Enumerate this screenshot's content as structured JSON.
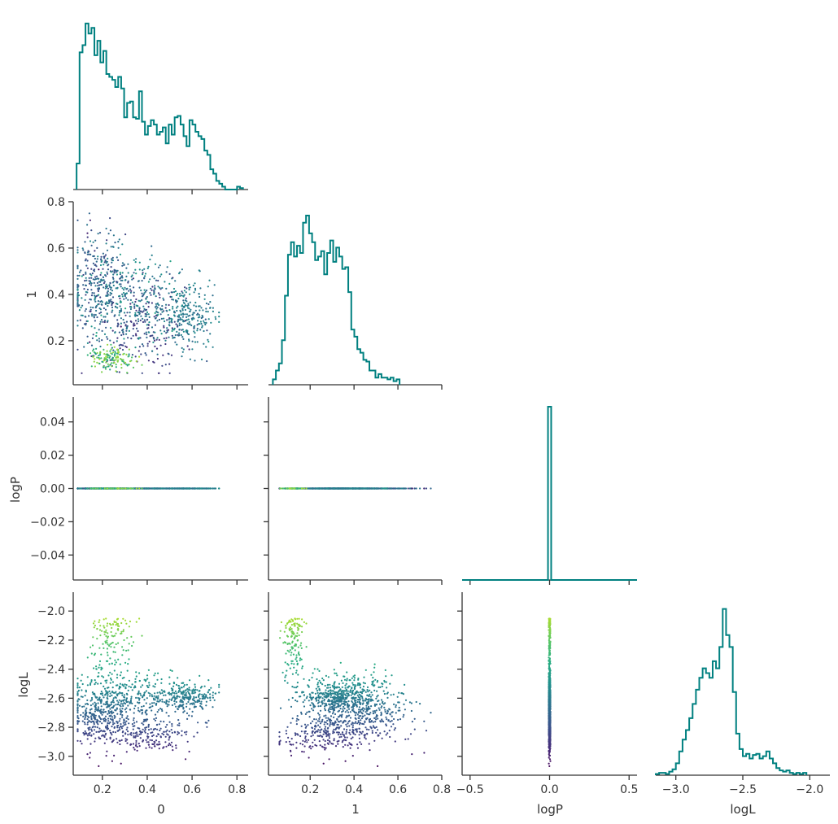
{
  "chart_data": {
    "type": "scatter",
    "layout": "corner-pairplot",
    "variables": [
      "0",
      "1",
      "logP",
      "logL"
    ],
    "diagonal": "step-histogram",
    "hist_color": "#008080",
    "colormap": "viridis",
    "color_variable": "logL",
    "grid": false,
    "legend": "none",
    "axes": {
      "0": {
        "label": "0",
        "lim": [
          0.07,
          0.85
        ],
        "ticks": [
          0.2,
          0.4,
          0.6,
          0.8
        ],
        "tick_labels": [
          "0.2",
          "0.4",
          "0.6",
          "0.8"
        ]
      },
      "1": {
        "label": "1",
        "lim": [
          0.01,
          0.8
        ],
        "ticks": [
          0.2,
          0.4,
          0.6,
          0.8
        ],
        "tick_labels": [
          "0.2",
          "0.4",
          "0.6",
          "0.8"
        ],
        "y_ticks": [
          0.2,
          0.4,
          0.6,
          0.8
        ],
        "y_tick_labels": [
          "0.2",
          "0.4",
          "0.6",
          "0.8"
        ]
      },
      "logP": {
        "label": "logP",
        "lim": [
          -0.055,
          0.055
        ],
        "ticks": [
          -0.5,
          0.0,
          0.5
        ],
        "tick_labels": [
          "−0.5",
          "0.0",
          "0.5"
        ],
        "x_lim": [
          -0.55,
          0.55
        ],
        "y_ticks": [
          -0.04,
          -0.02,
          0.0,
          0.02,
          0.04
        ],
        "y_tick_labels": [
          "−0.04",
          "−0.02",
          "0.00",
          "0.02",
          "0.04"
        ]
      },
      "logL": {
        "label": "logL",
        "lim": [
          -3.15,
          -1.85
        ],
        "ticks": [
          -3.0,
          -2.5,
          -2.0
        ],
        "tick_labels": [
          "−3.0",
          "−2.5",
          "−2.0"
        ],
        "y_lim": [
          -3.13,
          -1.87
        ],
        "y_ticks": [
          -3.0,
          -2.8,
          -2.6,
          -2.4,
          -2.2,
          -2.0
        ],
        "y_tick_labels": [
          "−3.0",
          "−2.8",
          "−2.6",
          "−2.4",
          "−2.2",
          "−2.0"
        ]
      }
    },
    "histograms": {
      "0": {
        "bin_start": 0.085,
        "bin_width": 0.01325,
        "counts": [
          18,
          95,
          100,
          115,
          108,
          112,
          93,
          103,
          88,
          96,
          80,
          78,
          76,
          71,
          78,
          70,
          50,
          60,
          61,
          50,
          49,
          68,
          47,
          38,
          44,
          48,
          45,
          38,
          40,
          43,
          32,
          45,
          38,
          50,
          51,
          45,
          37,
          30,
          48,
          45,
          40,
          37,
          35,
          27,
          24,
          14,
          11,
          6,
          4,
          2,
          0,
          0,
          0,
          0,
          2,
          1
        ]
      },
      "1": {
        "bin_start": 0.03,
        "bin_width": 0.01375,
        "counts": [
          3,
          8,
          12,
          25,
          50,
          73,
          80,
          72,
          78,
          74,
          91,
          95,
          85,
          80,
          70,
          72,
          75,
          62,
          74,
          81,
          69,
          77,
          72,
          65,
          66,
          52,
          31,
          27,
          20,
          18,
          14,
          13,
          8,
          8,
          4,
          6,
          4,
          4,
          3,
          4,
          2,
          3
        ]
      },
      "logP": {
        "bins": [
          [
            -0.55,
            0.0
          ],
          [
            -0.01,
            0.01,
            1.0
          ],
          [
            0.01,
            0.55,
            0.0
          ]
        ]
      },
      "logL": {
        "bin_start": -3.15,
        "bin_width": 0.025,
        "counts": [
          1,
          2,
          2,
          1,
          3,
          5,
          10,
          20,
          30,
          38,
          48,
          60,
          72,
          82,
          90,
          86,
          82,
          96,
          90,
          108,
          140,
          118,
          108,
          70,
          35,
          22,
          16,
          18,
          14,
          17,
          18,
          14,
          16,
          20,
          14,
          10,
          6,
          4,
          3,
          4,
          2,
          1,
          2,
          1,
          2
        ]
      },
      "logL_y_max": 150,
      "0_y_max": 120,
      "1_y_max": 100
    },
    "scatter_density": {
      "description_units": "data",
      "logL_clusters_vs_0": [
        {
          "x_center": 0.18,
          "x_spread": 0.07,
          "y_center": -2.72,
          "y_spread": 0.1,
          "n": 260
        },
        {
          "x_center": 0.35,
          "x_spread": 0.1,
          "y_center": -2.85,
          "y_spread": 0.07,
          "n": 220
        },
        {
          "x_center": 0.32,
          "x_spread": 0.13,
          "y_center": -2.6,
          "y_spread": 0.1,
          "n": 320
        },
        {
          "x_center": 0.58,
          "x_spread": 0.06,
          "y_center": -2.6,
          "y_spread": 0.05,
          "n": 220
        },
        {
          "x_center": 0.24,
          "x_spread": 0.05,
          "y_center": -2.25,
          "y_spread": 0.12,
          "n": 130
        }
      ]
    }
  }
}
